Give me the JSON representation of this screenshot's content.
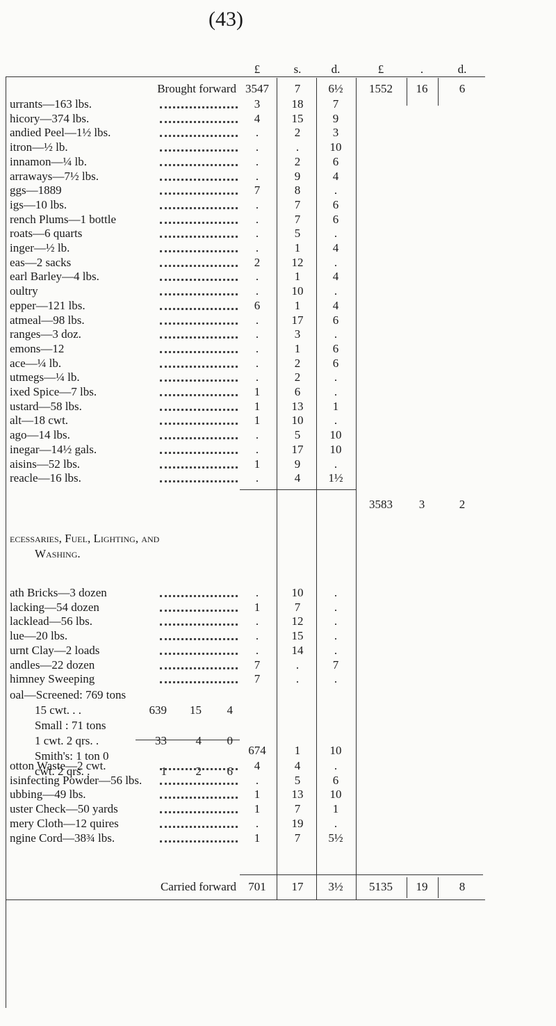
{
  "page_number": "(43)",
  "header": [
    "£",
    "s.",
    "d.",
    "£",
    ".",
    "d."
  ],
  "brought_forward": {
    "label": "Brought forward",
    "amount": [
      "3547",
      "7",
      "6½"
    ],
    "total": [
      "1552",
      "16",
      "6"
    ]
  },
  "section1": {
    "rows": [
      {
        "item": "urrants—163 lbs.",
        "amount": [
          "3",
          "18",
          "7"
        ]
      },
      {
        "item": "hicory—374 lbs.",
        "amount": [
          "4",
          "15",
          "9"
        ]
      },
      {
        "item": "andied Peel—1½ lbs.",
        "amount": [
          ".",
          "2",
          "3"
        ]
      },
      {
        "item": "itron—½ lb.",
        "amount": [
          ".",
          ".",
          "10"
        ]
      },
      {
        "item": "innamon—¼ lb.",
        "amount": [
          ".",
          "2",
          "6"
        ]
      },
      {
        "item": "arraways—7½ lbs.",
        "amount": [
          ".",
          "9",
          "4"
        ]
      },
      {
        "item": "ggs—1889",
        "amount": [
          "7",
          "8",
          "."
        ]
      },
      {
        "item": "igs—10 lbs.",
        "amount": [
          ".",
          "7",
          "6"
        ]
      },
      {
        "item": "rench Plums—1 bottle",
        "amount": [
          ".",
          "7",
          "6"
        ]
      },
      {
        "item": "roats—6 quarts",
        "amount": [
          ".",
          "5",
          "."
        ]
      },
      {
        "item": "inger—½ lb.",
        "amount": [
          ".",
          "1",
          "4"
        ]
      },
      {
        "item": "eas—2 sacks",
        "amount": [
          "2",
          "12",
          "."
        ]
      },
      {
        "item": "earl Barley—4 lbs.",
        "amount": [
          ".",
          "1",
          "4"
        ]
      },
      {
        "item": "oultry",
        "amount": [
          ".",
          "10",
          "."
        ]
      },
      {
        "item": "epper—121 lbs.",
        "amount": [
          "6",
          "1",
          "4"
        ]
      },
      {
        "item": "atmeal—98 lbs.",
        "amount": [
          ".",
          "17",
          "6"
        ]
      },
      {
        "item": "ranges—3 doz.",
        "amount": [
          ".",
          "3",
          "."
        ]
      },
      {
        "item": "emons—12",
        "amount": [
          ".",
          "1",
          "6"
        ]
      },
      {
        "item": "ace—¼ lb.",
        "amount": [
          ".",
          "2",
          "6"
        ]
      },
      {
        "item": "utmegs—¼ lb.",
        "amount": [
          ".",
          "2",
          "."
        ]
      },
      {
        "item": "ixed Spice—7 lbs.",
        "amount": [
          "1",
          "6",
          "."
        ]
      },
      {
        "item": "ustard—58 lbs.",
        "amount": [
          "1",
          "13",
          "1"
        ]
      },
      {
        "item": "alt—18 cwt.",
        "amount": [
          "1",
          "10",
          "."
        ]
      },
      {
        "item": "ago—14 lbs.",
        "amount": [
          ".",
          "5",
          "10"
        ]
      },
      {
        "item": "inegar—14½ gals.",
        "amount": [
          ".",
          "17",
          "10"
        ]
      },
      {
        "item": "aisins—52 lbs.",
        "amount": [
          "1",
          "9",
          "."
        ]
      },
      {
        "item": "reacle—16 lbs.",
        "amount": [
          ".",
          "4",
          "1½"
        ]
      }
    ],
    "total": [
      "3583",
      "3",
      "2"
    ]
  },
  "section2": {
    "heading": [
      "ecessaries, Fuel, Lighting, and",
      "Washing."
    ],
    "rows": [
      {
        "item": "ath Bricks—3 dozen",
        "amount": [
          ".",
          "10",
          "."
        ]
      },
      {
        "item": "lacking—54 dozen",
        "amount": [
          "1",
          "7",
          "."
        ]
      },
      {
        "item": "lacklead—56 lbs.",
        "amount": [
          ".",
          "12",
          "."
        ]
      },
      {
        "item": "lue—20 lbs.",
        "amount": [
          ".",
          "15",
          "."
        ]
      },
      {
        "item": "urnt Clay—2 loads",
        "amount": [
          ".",
          "14",
          "."
        ]
      },
      {
        "item": "andles—22 dozen",
        "amount": [
          "7",
          ".",
          "7"
        ]
      },
      {
        "item": "himney Sweeping",
        "amount": [
          "7",
          ".",
          "."
        ]
      }
    ],
    "coal": {
      "lines": [
        {
          "text": [
            "oal—Screened: 769 tons",
            "15 cwt.   . ."
          ],
          "amount": [
            "639",
            "15",
            "4"
          ]
        },
        {
          "text": [
            "Small : 71 tons",
            "1 cwt. 2 qrs.  ."
          ],
          "amount": [
            "33",
            "4",
            "0"
          ]
        },
        {
          "text": [
            "Smith's: 1 ton 0",
            "cwt. 2 qrs.   ."
          ],
          "amount": [
            "1",
            "2",
            "6"
          ]
        }
      ],
      "total": [
        "674",
        "1",
        "10"
      ]
    },
    "rows_after": [
      {
        "item": "otton Waste—2 cwt.",
        "amount": [
          "4",
          "4",
          "."
        ]
      },
      {
        "item": "isinfecting Powder—56 lbs.",
        "amount": [
          ".",
          "5",
          "6"
        ]
      },
      {
        "item": "ubbing—49 lbs.",
        "amount": [
          "1",
          "13",
          "10"
        ]
      },
      {
        "item": "uster Check—50 yards",
        "amount": [
          "1",
          "7",
          "1"
        ]
      },
      {
        "item": "mery Cloth—12 quires",
        "amount": [
          ".",
          "19",
          "."
        ]
      },
      {
        "item": "ngine Cord—38¾ lbs.",
        "amount": [
          "1",
          "7",
          "5½"
        ]
      }
    ]
  },
  "carried_forward": {
    "label": "Carried forward",
    "amount": [
      "701",
      "17",
      "3½"
    ],
    "total": [
      "5135",
      "19",
      "8"
    ]
  }
}
